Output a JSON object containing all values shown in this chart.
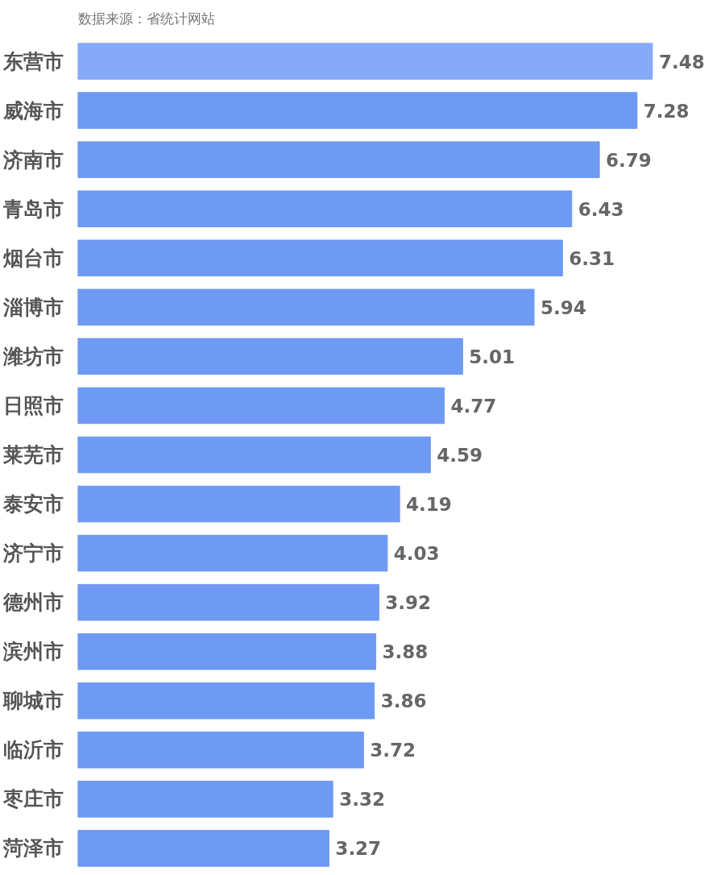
{
  "chart_data": {
    "type": "bar",
    "orientation": "horizontal",
    "annotations": [
      "数据来源：省统计网站"
    ],
    "categories": [
      "东营市",
      "威海市",
      "济南市",
      "青岛市",
      "烟台市",
      "淄博市",
      "潍坊市",
      "日照市",
      "莱芜市",
      "泰安市",
      "济宁市",
      "德州市",
      "滨州市",
      "聊城市",
      "临沂市",
      "枣庄市",
      "菏泽市"
    ],
    "values": [
      7.48,
      7.28,
      6.79,
      6.43,
      6.31,
      5.94,
      5.01,
      4.77,
      4.59,
      4.19,
      4.03,
      3.92,
      3.88,
      3.86,
      3.72,
      3.32,
      3.27
    ],
    "colors": [
      "#86aaf7",
      "#6e9af3",
      "#6e9af3",
      "#6e9af3",
      "#6e9af3",
      "#6e9af3",
      "#6e9af3",
      "#6e9af3",
      "#6e9af3",
      "#6e9af3",
      "#6e9af3",
      "#6e9af3",
      "#6e9af3",
      "#6e9af3",
      "#6e9af3",
      "#6e9af3",
      "#6e9af3"
    ],
    "data_labels": true,
    "grid": false
  }
}
